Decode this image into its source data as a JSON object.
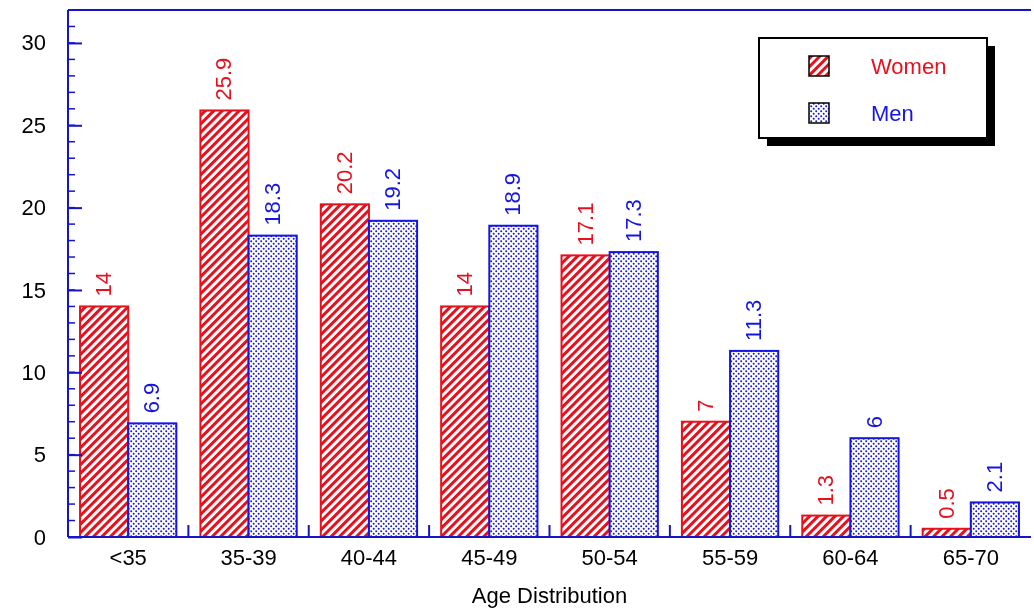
{
  "chart_data": {
    "type": "bar",
    "xlabel": "Age Distribution",
    "categories": [
      "<35",
      "35-39",
      "40-44",
      "45-49",
      "50-54",
      "55-59",
      "60-64",
      "65-70"
    ],
    "series": [
      {
        "name": "Women",
        "color": "#e8101c",
        "values": [
          14,
          25.9,
          20.2,
          14,
          17.1,
          7,
          1.3,
          0.5
        ]
      },
      {
        "name": "Men",
        "color": "#1414e6",
        "values": [
          6.9,
          18.3,
          19.2,
          18.9,
          17.3,
          11.3,
          6,
          2.1
        ]
      }
    ],
    "ylim": [
      0,
      32
    ],
    "yticks": [
      0,
      5,
      10,
      15,
      20,
      25,
      30
    ],
    "grid": false,
    "legend": "top right",
    "data_labels": true
  }
}
